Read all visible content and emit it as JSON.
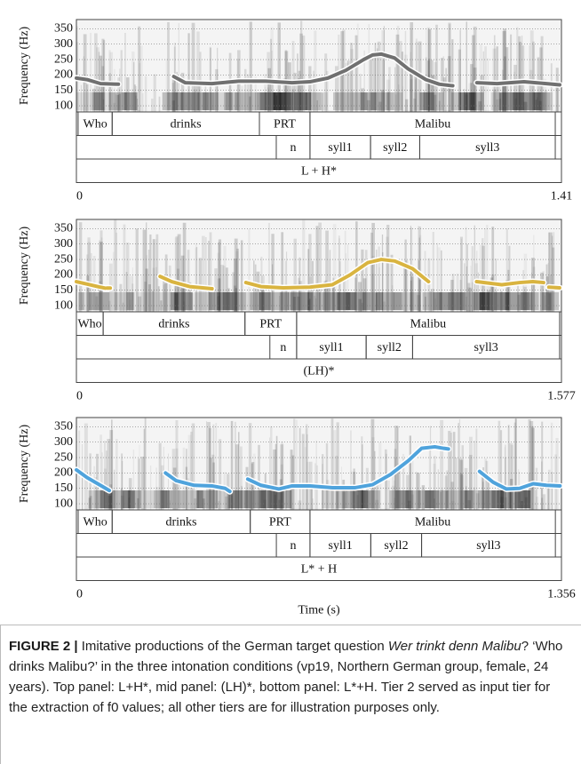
{
  "chart_data": [
    {
      "type": "line",
      "ylabel": "Frequency (Hz)",
      "xlim": [
        0,
        1.41
      ],
      "ylim": [
        80,
        380
      ],
      "xticks": [
        0,
        1.41
      ],
      "yticks": [
        100,
        150,
        200,
        250,
        300,
        350
      ],
      "series": [
        {
          "color": "#707070",
          "x": [
            0,
            0.031,
            0.07,
            0.122,
            null,
            0.283,
            0.316,
            0.394,
            0.472,
            0.55,
            0.627,
            0.679,
            0.731,
            0.783,
            0.835,
            0.861,
            0.886,
            0.925,
            0.964,
            1.016,
            1.055,
            1.094,
            null,
            1.164,
            1.223,
            1.301,
            1.366,
            1.405
          ],
          "values": [
            190,
            185,
            172,
            170,
            null,
            195,
            175,
            172,
            180,
            180,
            175,
            178,
            190,
            215,
            250,
            265,
            268,
            255,
            220,
            185,
            170,
            165,
            null,
            175,
            172,
            178,
            172,
            168
          ]
        }
      ],
      "tiers": [
        [
          {
            "start": 0.005,
            "end": 0.104,
            "label": "Who"
          },
          {
            "start": 0.104,
            "end": 0.532,
            "label": "drinks"
          },
          {
            "start": 0.532,
            "end": 0.679,
            "label": "PRT"
          },
          {
            "start": 0.679,
            "end": 1.392,
            "label": "Malibu"
          }
        ],
        [
          {
            "start": 0.581,
            "end": 0.679,
            "label": "n"
          },
          {
            "start": 0.679,
            "end": 0.855,
            "label": "syll1"
          },
          {
            "start": 0.855,
            "end": 0.998,
            "label": "syll2"
          },
          {
            "start": 0.998,
            "end": 1.392,
            "label": "syll3"
          }
        ],
        [
          {
            "start": 0,
            "end": 1.41,
            "label": "L + H*"
          }
        ]
      ]
    },
    {
      "type": "line",
      "ylabel": "Frequency (Hz)",
      "xlim": [
        0,
        1.577
      ],
      "ylim": [
        80,
        380
      ],
      "xticks": [
        0,
        1.577
      ],
      "yticks": [
        100,
        150,
        200,
        250,
        300,
        350
      ],
      "series": [
        {
          "color": "#d9b440",
          "x": [
            0,
            0.035,
            0.078,
            0.093,
            null,
            0.099,
            0.11,
            null,
            0.272,
            0.31,
            0.368,
            0.441,
            null,
            0.551,
            0.6,
            0.672,
            0.759,
            0.832,
            0.89,
            0.948,
            0.991,
            1.035,
            1.093,
            1.145,
            null,
            1.301,
            1.383,
            1.441,
            1.484,
            1.519,
            null,
            1.536,
            1.571
          ],
          "values": [
            178,
            170,
            160,
            157,
            null,
            157,
            157,
            null,
            195,
            178,
            162,
            155,
            null,
            175,
            162,
            158,
            160,
            168,
            200,
            240,
            250,
            245,
            220,
            178,
            null,
            178,
            168,
            175,
            178,
            175,
            null,
            160,
            158
          ]
        }
      ],
      "tiers": [
        [
          {
            "start": 0,
            "end": 0.087,
            "label": "Who"
          },
          {
            "start": 0.087,
            "end": 0.548,
            "label": "drinks"
          },
          {
            "start": 0.548,
            "end": 0.716,
            "label": "PRT"
          },
          {
            "start": 0.716,
            "end": 1.571,
            "label": "Malibu"
          }
        ],
        [
          {
            "start": 0.629,
            "end": 0.716,
            "label": "n"
          },
          {
            "start": 0.716,
            "end": 0.942,
            "label": "syll1"
          },
          {
            "start": 0.942,
            "end": 1.093,
            "label": "syll2"
          },
          {
            "start": 1.093,
            "end": 1.571,
            "label": "syll3"
          }
        ],
        [
          {
            "start": 0,
            "end": 1.577,
            "label": "(LH)*"
          }
        ]
      ]
    },
    {
      "type": "line",
      "ylabel": "Frequency (Hz)",
      "xlabel": "Time (s)",
      "xlim": [
        0,
        1.356
      ],
      "ylim": [
        80,
        380
      ],
      "xticks": [
        0,
        1.356
      ],
      "yticks": [
        100,
        150,
        200,
        250,
        300,
        350
      ],
      "series": [
        {
          "color": "#4fa3dc",
          "x": [
            0,
            0.03,
            0.067,
            0.092,
            null,
            0.249,
            0.279,
            0.329,
            0.379,
            0.416,
            0.429,
            null,
            0.479,
            0.516,
            0.566,
            0.603,
            0.653,
            0.716,
            0.778,
            0.828,
            0.878,
            0.928,
            0.965,
            1.002,
            1.027,
            1.04,
            null,
            1.127,
            1.165,
            1.202,
            1.239,
            1.277,
            1.314,
            1.352
          ],
          "values": [
            210,
            185,
            160,
            143,
            null,
            200,
            175,
            160,
            158,
            150,
            140,
            null,
            180,
            160,
            148,
            158,
            158,
            152,
            152,
            162,
            195,
            240,
            280,
            285,
            280,
            278,
            null,
            205,
            170,
            148,
            150,
            165,
            160,
            158
          ]
        }
      ],
      "tiers": [
        [
          {
            "start": 0.005,
            "end": 0.1,
            "label": "Who"
          },
          {
            "start": 0.1,
            "end": 0.486,
            "label": "drinks"
          },
          {
            "start": 0.486,
            "end": 0.653,
            "label": "PRT"
          },
          {
            "start": 0.653,
            "end": 1.339,
            "label": "Malibu"
          }
        ],
        [
          {
            "start": 0.559,
            "end": 0.653,
            "label": "n"
          },
          {
            "start": 0.653,
            "end": 0.823,
            "label": "syll1"
          },
          {
            "start": 0.823,
            "end": 0.965,
            "label": "syll2"
          },
          {
            "start": 0.965,
            "end": 1.339,
            "label": "syll3"
          }
        ],
        [
          {
            "start": 0,
            "end": 1.356,
            "label": "L* + H"
          }
        ]
      ]
    }
  ],
  "caption": {
    "label": "FIGURE 2 |",
    "text1": "Imitative productions of the German target question ",
    "italic": "Wer trinkt denn Malibu",
    "text2": "? ‘Who drinks Malibu?’ in the three intonation conditions (vp19, Northern German group, female, 24 years). Top panel: L+H*, mid panel: (LH)*, bottom panel: L*+H. Tier 2 served as input tier for the extraction of f0 values; all other tiers are for illustration purposes only."
  }
}
